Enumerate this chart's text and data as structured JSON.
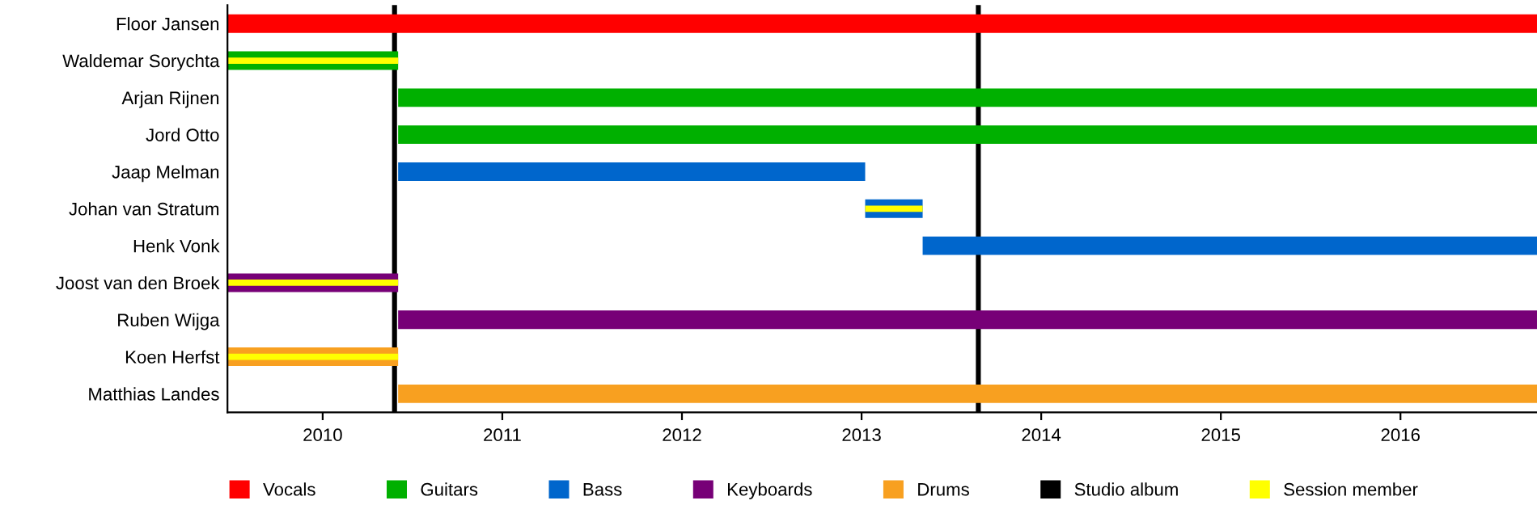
{
  "chart_data": {
    "type": "bar",
    "orientation": "horizontal",
    "categories": [
      "Floor Jansen",
      "Waldemar Sorychta",
      "Arjan Rijnen",
      "Jord Otto",
      "Jaap Melman",
      "Johan van Stratum",
      "Henk Vonk",
      "Joost van den Broek",
      "Ruben Wijga",
      "Koen Herfst",
      "Matthias Landes"
    ],
    "series": [
      {
        "name": "Vocals",
        "color": "#ff0000",
        "base": [
          2009.47,
          null,
          null,
          null,
          null,
          null,
          null,
          null,
          null,
          null,
          null
        ],
        "values": [
          7.29,
          null,
          null,
          null,
          null,
          null,
          null,
          null,
          null,
          null,
          null
        ]
      },
      {
        "name": "Guitars",
        "color": "#00b000",
        "base": [
          null,
          2009.47,
          2010.42,
          2010.42,
          null,
          null,
          null,
          null,
          null,
          null,
          null
        ],
        "values": [
          null,
          0.95,
          6.34,
          6.34,
          null,
          null,
          null,
          null,
          null,
          null,
          null
        ]
      },
      {
        "name": "Bass",
        "color": "#0066cc",
        "base": [
          null,
          null,
          null,
          null,
          2010.42,
          2013.02,
          2013.34,
          null,
          null,
          null,
          null
        ],
        "values": [
          null,
          null,
          null,
          null,
          2.6,
          0.32,
          3.42,
          null,
          null,
          null,
          null
        ]
      },
      {
        "name": "Keyboards",
        "color": "#770077",
        "base": [
          null,
          null,
          null,
          null,
          null,
          null,
          null,
          2009.47,
          2010.42,
          null,
          null
        ],
        "values": [
          null,
          null,
          null,
          null,
          null,
          null,
          null,
          0.95,
          6.34,
          null,
          null
        ]
      },
      {
        "name": "Drums",
        "color": "#f8a020",
        "base": [
          null,
          null,
          null,
          null,
          null,
          null,
          null,
          null,
          null,
          2009.47,
          2010.42
        ],
        "values": [
          null,
          null,
          null,
          null,
          null,
          null,
          null,
          null,
          null,
          0.95,
          6.34
        ]
      },
      {
        "name": "Session member",
        "color": "#ffff00",
        "base": [
          null,
          2009.47,
          null,
          null,
          null,
          2013.02,
          null,
          2009.47,
          null,
          2009.47,
          null
        ],
        "values": [
          null,
          0.95,
          null,
          null,
          null,
          0.32,
          null,
          0.95,
          null,
          0.95,
          null
        ]
      }
    ],
    "ref_lines": [
      {
        "axis": "x",
        "value": 2010.4,
        "label": "Studio album",
        "color": "#000000"
      },
      {
        "axis": "x",
        "value": 2013.65,
        "color": "#000000"
      }
    ],
    "xlim": [
      2009.47,
      2016.76
    ],
    "xticks": [
      2010,
      2011,
      2012,
      2013,
      2014,
      2015,
      2016
    ],
    "legend": "bottom",
    "grid": false
  }
}
